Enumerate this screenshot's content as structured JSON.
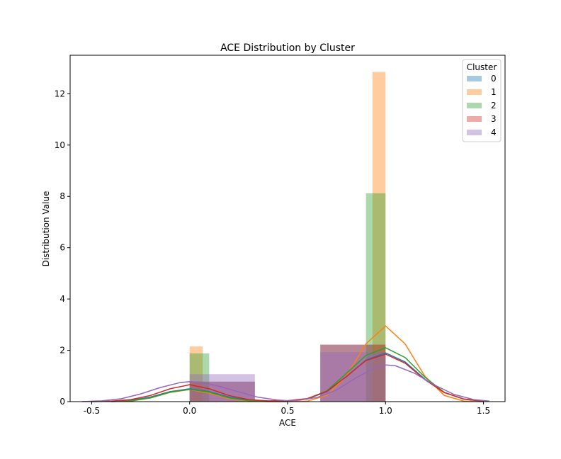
{
  "chart_data": {
    "type": "bar",
    "title": "ACE Distribution by Cluster",
    "xlabel": "ACE",
    "ylabel": "Distribution Value",
    "xlim": [
      -0.61,
      1.61
    ],
    "ylim": [
      0,
      13.5
    ],
    "xticks": [
      "-0.5",
      "0.0",
      "0.5",
      "1.0",
      "1.5"
    ],
    "xtick_values": [
      -0.5,
      0.0,
      0.5,
      1.0,
      1.5
    ],
    "yticks": [
      "0",
      "2",
      "4",
      "6",
      "8",
      "10",
      "12"
    ],
    "ytick_values": [
      0,
      2,
      4,
      6,
      8,
      10,
      12
    ],
    "grid": false,
    "legend": {
      "title": "Cluster",
      "placement": "top-right"
    },
    "series": [
      {
        "name": "0",
        "color": "#1f77b4",
        "histogram": [
          {
            "x0": 0.0,
            "x1": 0.333,
            "height": 0.78
          },
          {
            "x0": 0.667,
            "x1": 1.0,
            "height": 2.22
          }
        ],
        "kde": [
          [
            -0.5,
            0.0
          ],
          [
            -0.4,
            0.01
          ],
          [
            -0.3,
            0.05
          ],
          [
            -0.2,
            0.18
          ],
          [
            -0.1,
            0.39
          ],
          [
            0.0,
            0.5
          ],
          [
            0.1,
            0.39
          ],
          [
            0.2,
            0.18
          ],
          [
            0.3,
            0.06
          ],
          [
            0.4,
            0.02
          ],
          [
            0.5,
            0.03
          ],
          [
            0.6,
            0.1
          ],
          [
            0.7,
            0.39
          ],
          [
            0.8,
            0.97
          ],
          [
            0.9,
            1.62
          ],
          [
            1.0,
            1.9
          ],
          [
            1.1,
            1.55
          ],
          [
            1.2,
            0.88
          ],
          [
            1.3,
            0.36
          ],
          [
            1.4,
            0.1
          ],
          [
            1.5,
            0.02
          ]
        ]
      },
      {
        "name": "1",
        "color": "#ff7f0e",
        "histogram": [
          {
            "x0": 0.0,
            "x1": 0.0667,
            "height": 2.15
          },
          {
            "x0": 0.9333,
            "x1": 1.0,
            "height": 12.85
          }
        ],
        "kde": [
          [
            -0.4,
            0.0
          ],
          [
            -0.3,
            0.02
          ],
          [
            -0.2,
            0.14
          ],
          [
            -0.1,
            0.36
          ],
          [
            0.0,
            0.47
          ],
          [
            0.1,
            0.33
          ],
          [
            0.2,
            0.12
          ],
          [
            0.3,
            0.02
          ],
          [
            0.4,
            0.0
          ],
          [
            0.5,
            0.0
          ],
          [
            0.6,
            0.02
          ],
          [
            0.7,
            0.24
          ],
          [
            0.8,
            1.0
          ],
          [
            0.9,
            2.25
          ],
          [
            1.0,
            2.95
          ],
          [
            1.1,
            2.25
          ],
          [
            1.2,
            1.0
          ],
          [
            1.3,
            0.24
          ],
          [
            1.4,
            0.02
          ],
          [
            1.5,
            0.0
          ]
        ]
      },
      {
        "name": "2",
        "color": "#2ca02c",
        "histogram": [
          {
            "x0": 0.0,
            "x1": 0.1,
            "height": 1.88
          },
          {
            "x0": 0.9,
            "x1": 1.0,
            "height": 8.12
          }
        ],
        "kde": [
          [
            -0.4,
            0.0
          ],
          [
            -0.3,
            0.03
          ],
          [
            -0.2,
            0.15
          ],
          [
            -0.1,
            0.37
          ],
          [
            0.0,
            0.48
          ],
          [
            0.1,
            0.37
          ],
          [
            0.2,
            0.15
          ],
          [
            0.3,
            0.04
          ],
          [
            0.4,
            0.01
          ],
          [
            0.5,
            0.02
          ],
          [
            0.6,
            0.1
          ],
          [
            0.7,
            0.42
          ],
          [
            0.8,
            1.1
          ],
          [
            0.9,
            1.8
          ],
          [
            1.0,
            2.1
          ],
          [
            1.1,
            1.72
          ],
          [
            1.2,
            0.96
          ],
          [
            1.3,
            0.36
          ],
          [
            1.4,
            0.09
          ],
          [
            1.5,
            0.01
          ]
        ]
      },
      {
        "name": "3",
        "color": "#d62728",
        "histogram": [
          {
            "x0": 0.0,
            "x1": 0.333,
            "height": 0.78
          },
          {
            "x0": 0.667,
            "x1": 1.0,
            "height": 2.22
          }
        ],
        "kde": [
          [
            -0.5,
            0.0
          ],
          [
            -0.4,
            0.02
          ],
          [
            -0.3,
            0.08
          ],
          [
            -0.2,
            0.24
          ],
          [
            -0.1,
            0.5
          ],
          [
            0.0,
            0.66
          ],
          [
            0.1,
            0.5
          ],
          [
            0.2,
            0.24
          ],
          [
            0.3,
            0.08
          ],
          [
            0.4,
            0.03
          ],
          [
            0.5,
            0.04
          ],
          [
            0.6,
            0.12
          ],
          [
            0.7,
            0.4
          ],
          [
            0.8,
            0.98
          ],
          [
            0.9,
            1.6
          ],
          [
            1.0,
            1.85
          ],
          [
            1.1,
            1.5
          ],
          [
            1.2,
            0.86
          ],
          [
            1.3,
            0.35
          ],
          [
            1.4,
            0.1
          ],
          [
            1.5,
            0.02
          ]
        ]
      },
      {
        "name": "4",
        "color": "#9467bd",
        "histogram": [
          {
            "x0": 0.0,
            "x1": 0.333,
            "height": 1.07
          },
          {
            "x0": 0.667,
            "x1": 1.0,
            "height": 1.93
          }
        ],
        "kde": [
          [
            -0.55,
            0.0
          ],
          [
            -0.45,
            0.03
          ],
          [
            -0.35,
            0.11
          ],
          [
            -0.25,
            0.3
          ],
          [
            -0.15,
            0.55
          ],
          [
            -0.05,
            0.74
          ],
          [
            0.0,
            0.78
          ],
          [
            0.05,
            0.76
          ],
          [
            0.15,
            0.6
          ],
          [
            0.25,
            0.38
          ],
          [
            0.35,
            0.17
          ],
          [
            0.45,
            0.06
          ],
          [
            0.5,
            0.04
          ],
          [
            0.55,
            0.05
          ],
          [
            0.65,
            0.16
          ],
          [
            0.75,
            0.45
          ],
          [
            0.85,
            0.93
          ],
          [
            0.95,
            1.35
          ],
          [
            1.0,
            1.43
          ],
          [
            1.05,
            1.4
          ],
          [
            1.15,
            1.1
          ],
          [
            1.25,
            0.65
          ],
          [
            1.35,
            0.28
          ],
          [
            1.45,
            0.08
          ],
          [
            1.53,
            0.02
          ]
        ]
      }
    ]
  }
}
